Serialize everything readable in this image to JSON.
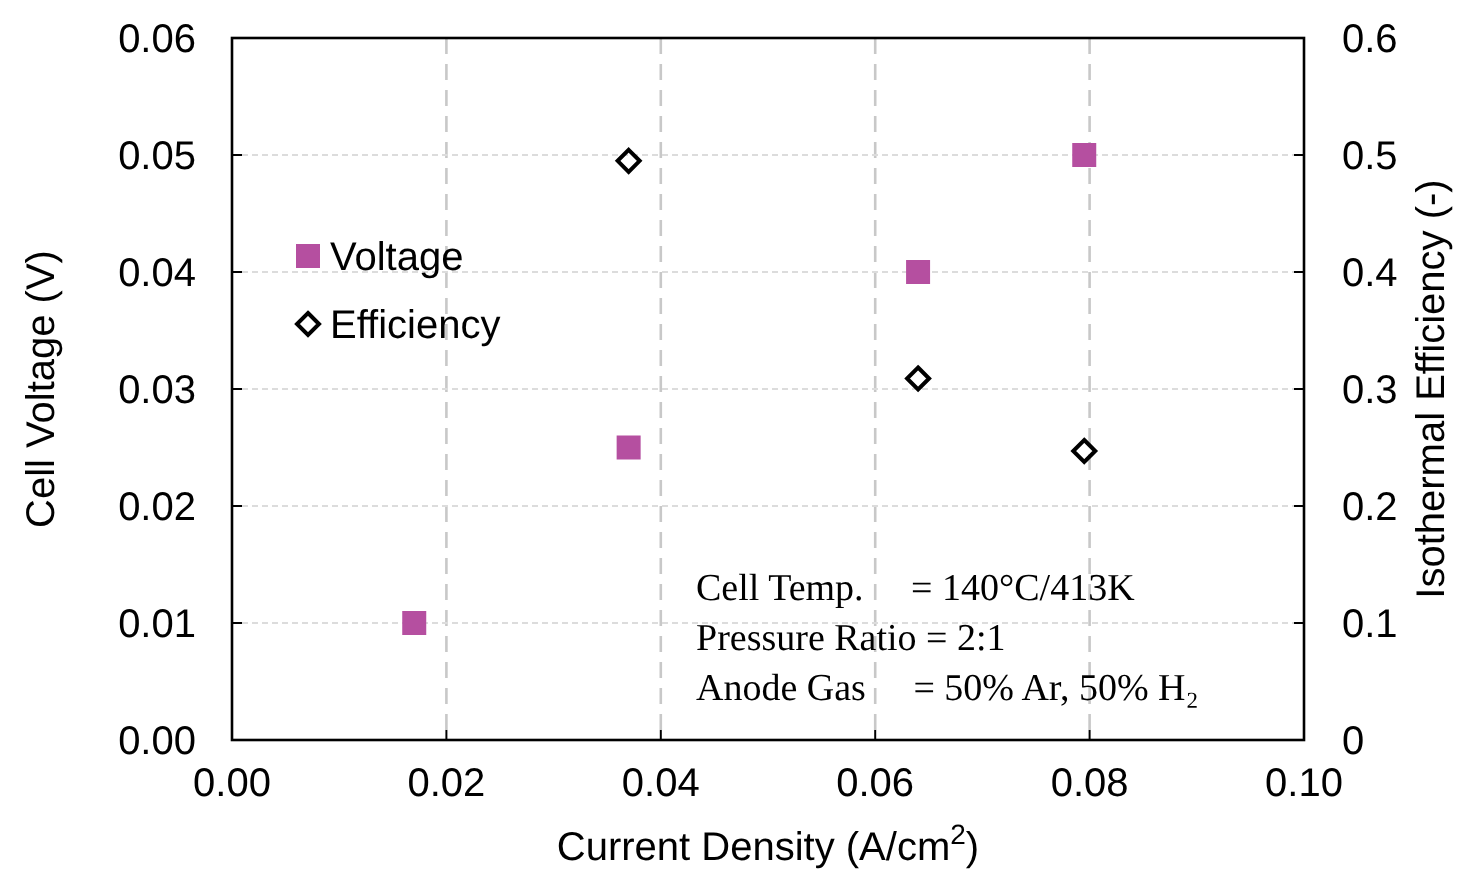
{
  "chart_data": {
    "type": "scatter",
    "xlabel": "Current Density (A/cm$^{2}$)",
    "ylabel": "Cell Voltage (V)",
    "y2label": "Isothermal Efficiency (-)",
    "xlim": [
      0,
      0.1
    ],
    "xticks": [
      {
        "value": 0,
        "label": "0.00"
      },
      {
        "value": 0.02,
        "label": "0.02"
      },
      {
        "value": 0.04,
        "label": "0.04"
      },
      {
        "value": 0.06,
        "label": "0.06"
      },
      {
        "value": 0.08,
        "label": "0.08"
      },
      {
        "value": 0.1,
        "label": "0.10"
      }
    ],
    "ylim": [
      0,
      0.06
    ],
    "yticks": [
      {
        "value": 0,
        "label": "0.00"
      },
      {
        "value": 0.01,
        "label": "0.01"
      },
      {
        "value": 0.02,
        "label": "0.02"
      },
      {
        "value": 0.03,
        "label": "0.03"
      },
      {
        "value": 0.04,
        "label": "0.04"
      },
      {
        "value": 0.05,
        "label": "0.05"
      },
      {
        "value": 0.06,
        "label": "0.06"
      }
    ],
    "y2lim": [
      0,
      0.6
    ],
    "y2ticks": [
      0,
      0.1,
      0.2,
      0.3,
      0.4,
      0.5,
      0.6
    ],
    "grid": true,
    "legend": "left",
    "series": [
      {
        "name": "Voltage",
        "color": "#b54fa0",
        "marker": "square",
        "x": [
          0.017,
          0.037,
          0.064,
          0.0795
        ],
        "values": [
          0.01,
          0.025,
          0.04,
          0.05
        ]
      },
      {
        "name": "Efficiency",
        "color": "#000000",
        "marker": "diamond",
        "axis": "y2",
        "x": [
          0.037,
          0.064,
          0.0795
        ],
        "values": [
          0.495,
          0.309,
          0.247
        ]
      }
    ],
    "annotations": [
      "Cell Temp.     = 140°C/413K",
      "Pressure Ratio = 2:1",
      "Anode Gas     = 50% Ar, 50% H₂"
    ]
  }
}
